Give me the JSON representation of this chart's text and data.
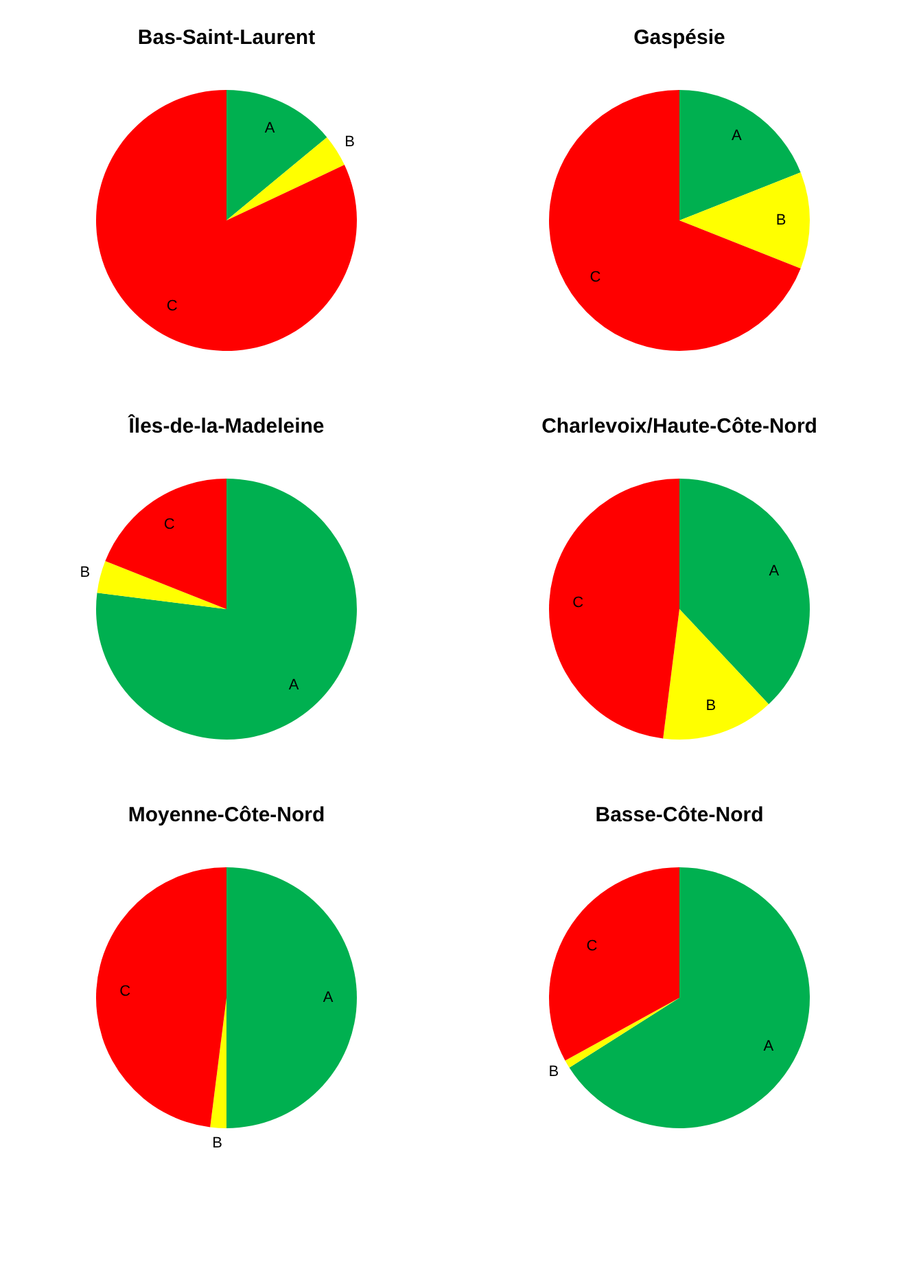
{
  "chart_data": [
    {
      "type": "pie",
      "title": "Bas-Saint-Laurent",
      "categories": [
        "A",
        "B",
        "C"
      ],
      "values": [
        14,
        4,
        82
      ],
      "colors": [
        "#00b050",
        "#ffff00",
        "#ff0000"
      ]
    },
    {
      "type": "pie",
      "title": "Gaspésie",
      "categories": [
        "A",
        "B",
        "C"
      ],
      "values": [
        19,
        12,
        69
      ],
      "colors": [
        "#00b050",
        "#ffff00",
        "#ff0000"
      ]
    },
    {
      "type": "pie",
      "title": "Îles-de-la-Madeleine",
      "categories": [
        "A",
        "B",
        "C"
      ],
      "values": [
        77,
        4,
        19
      ],
      "colors": [
        "#00b050",
        "#ffff00",
        "#ff0000"
      ]
    },
    {
      "type": "pie",
      "title": "Charlevoix/Haute-Côte-Nord",
      "categories": [
        "A",
        "B",
        "C"
      ],
      "values": [
        38,
        14,
        48
      ],
      "colors": [
        "#00b050",
        "#ffff00",
        "#ff0000"
      ]
    },
    {
      "type": "pie",
      "title": "Moyenne-Côte-Nord",
      "categories": [
        "A",
        "B",
        "C"
      ],
      "values": [
        50,
        2,
        48
      ],
      "colors": [
        "#00b050",
        "#ffff00",
        "#ff0000"
      ]
    },
    {
      "type": "pie",
      "title": "Basse-Côte-Nord",
      "categories": [
        "A",
        "B",
        "C"
      ],
      "values": [
        66,
        1,
        33
      ],
      "colors": [
        "#00b050",
        "#ffff00",
        "#ff0000"
      ]
    }
  ]
}
